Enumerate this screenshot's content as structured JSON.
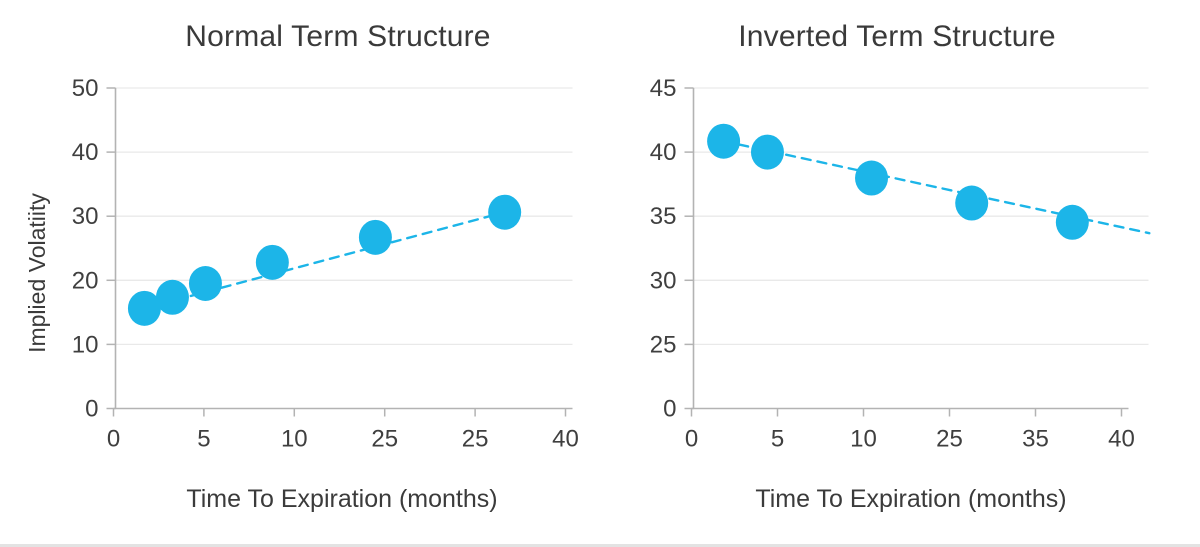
{
  "theme": {
    "background": "#ffffff",
    "accent": "#1cb5e8",
    "title_color": "#3a3a3a",
    "tick_color": "#3f3f3f",
    "axis_color": "#b3b3b3",
    "grid_color": "#e9e9e9",
    "bottom_border_color": "#e3e3e3"
  },
  "chart_data": [
    {
      "type": "scatter",
      "title": "Normal Term Structure",
      "xlabel": "Time To Expiration (months)",
      "ylabel": "Implied Volatiity",
      "x_tick_labels": [
        "0",
        "5",
        "10",
        "25",
        "25",
        "40"
      ],
      "y_tick_labels": [
        "0",
        "10",
        "20",
        "30",
        "40",
        "50"
      ],
      "ylim": [
        0,
        50
      ],
      "xlim_labeled": [
        0,
        40
      ],
      "grid": "horizontal-only",
      "legend": "none",
      "accent_color": "#1cb5e8",
      "trendline": {
        "style": "dashed",
        "from": {
          "fx": 0.064,
          "fy": 0.3125
        },
        "to": {
          "fx": 0.861,
          "fy": 0.6125
        }
      },
      "points": [
        {
          "months_est": 1.5,
          "implied_vol": 15.5,
          "fx": 0.064,
          "fy": 0.3125
        },
        {
          "months_est": 3,
          "implied_vol": 17.5,
          "fx": 0.126,
          "fy": 0.347
        },
        {
          "months_est": 5,
          "implied_vol": 19.5,
          "fx": 0.199,
          "fy": 0.39
        },
        {
          "months_est": 9,
          "implied_vol": 23,
          "fx": 0.347,
          "fy": 0.456
        },
        {
          "months_est": 23,
          "implied_vol": 27,
          "fx": 0.575,
          "fy": 0.534
        },
        {
          "months_est": 30,
          "implied_vol": 31,
          "fx": 0.861,
          "fy": 0.6125
        }
      ]
    },
    {
      "type": "scatter",
      "title": "Inverted Term Structure",
      "xlabel": "Time To Expiration (months)",
      "x_tick_labels": [
        "0",
        "5",
        "10",
        "25",
        "35",
        "40"
      ],
      "y_tick_labels": [
        "0",
        "25",
        "30",
        "35",
        "40",
        "45"
      ],
      "ylim": [
        0,
        45
      ],
      "xlim_labeled": [
        0,
        40
      ],
      "grid": "horizontal-only",
      "legend": "none",
      "accent_color": "#1cb5e8",
      "trendline": {
        "style": "dashed",
        "from": {
          "fx": 0.07,
          "fy": 0.834
        },
        "to": {
          "fx": 1.06,
          "fy": 0.547
        }
      },
      "points": [
        {
          "months_est": 2,
          "implied_vol": 41,
          "fx": 0.07,
          "fy": 0.834
        },
        {
          "months_est": 4.5,
          "implied_vol": 40,
          "fx": 0.172,
          "fy": 0.8
        },
        {
          "months_est": 10.5,
          "implied_vol": 38,
          "fx": 0.414,
          "fy": 0.719
        },
        {
          "months_est": 26,
          "implied_vol": 36,
          "fx": 0.647,
          "fy": 0.641
        },
        {
          "months_est": 36,
          "implied_vol": 34.5,
          "fx": 0.881,
          "fy": 0.581
        }
      ]
    }
  ]
}
